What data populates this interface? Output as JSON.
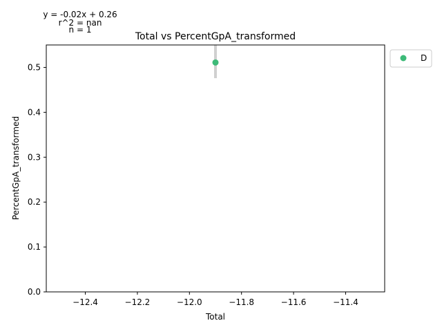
{
  "chart_data": {
    "type": "scatter",
    "title": "Total vs PercentGpA_transformed",
    "xlabel": "Total",
    "ylabel": "PercentGpA_transformed",
    "xlim": [
      -12.55,
      -11.25
    ],
    "ylim": [
      0.0,
      0.55
    ],
    "xticks": [
      -12.4,
      -12.2,
      -12.0,
      -11.8,
      -11.6,
      -11.4
    ],
    "xtick_labels": [
      "−12.4",
      "−12.2",
      "−12.0",
      "−11.8",
      "−11.6",
      "−11.4"
    ],
    "yticks": [
      0.0,
      0.1,
      0.2,
      0.3,
      0.4,
      0.5
    ],
    "ytick_labels": [
      "0.0",
      "0.1",
      "0.2",
      "0.3",
      "0.4",
      "0.5"
    ],
    "grid": false,
    "legend_position": "outside-top-right",
    "annotations": [
      "y = -0.02x + 0.26",
      "r^2 = nan",
      "n = 1"
    ],
    "series": [
      {
        "name": "D",
        "color": "#3dba78",
        "points": [
          {
            "x": -11.9,
            "y": 0.511,
            "yerr_low": 0.476,
            "yerr_high": 0.55
          }
        ]
      }
    ]
  }
}
